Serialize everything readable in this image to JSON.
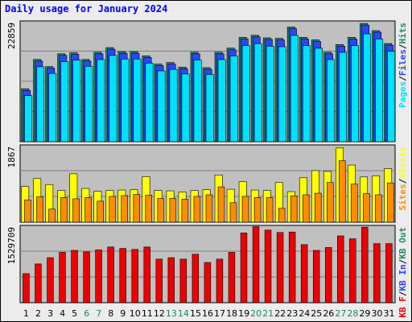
{
  "title": "Daily usage for January 2024",
  "colors": {
    "pages": "#00e0ff",
    "files": "#2a46ff",
    "hits": "#1d8c6a",
    "visits": "#ffff00",
    "sites": "#ff8c00",
    "kbin": "#ee0000",
    "weekend": "#1b8a5a",
    "weekday": "#000000",
    "plot_bg": "#c0c0c0",
    "frame_bg": "#ececec"
  },
  "chart_data": [
    {
      "type": "bar",
      "panel": "hits-files-pages",
      "ymax_label": "22859",
      "ylim": [
        0,
        22859
      ],
      "legend": [
        {
          "key": "pages",
          "text": "Pages",
          "color": "#00e0ff"
        },
        {
          "key": "sep1",
          "text": "/",
          "color": "#000000"
        },
        {
          "key": "files",
          "text": "Files",
          "color": "#2a46ff"
        },
        {
          "key": "sep2",
          "text": "/",
          "color": "#000000"
        },
        {
          "key": "hits",
          "text": "Hits",
          "color": "#1d8c6a"
        }
      ],
      "categories": [
        "1",
        "2",
        "3",
        "4",
        "5",
        "6",
        "7",
        "8",
        "9",
        "10",
        "11",
        "12",
        "13",
        "14",
        "15",
        "16",
        "17",
        "18",
        "19",
        "20",
        "21",
        "22",
        "23",
        "24",
        "25",
        "26",
        "27",
        "28",
        "29",
        "30",
        "31"
      ],
      "series": [
        {
          "name": "Hits",
          "values": [
            10300,
            16000,
            14600,
            17100,
            17300,
            16000,
            17400,
            18300,
            17500,
            17500,
            16700,
            15100,
            15400,
            14500,
            17400,
            14400,
            17400,
            18200,
            20300,
            20700,
            20200,
            20100,
            22300,
            20300,
            19800,
            17400,
            18900,
            20300,
            23000,
            21600,
            19100
          ]
        },
        {
          "name": "Files",
          "values": [
            10300,
            16000,
            14600,
            17100,
            17300,
            16000,
            17400,
            18300,
            17500,
            17500,
            16700,
            15100,
            15400,
            14500,
            17400,
            14400,
            17400,
            18200,
            20300,
            20700,
            20200,
            20100,
            22300,
            20300,
            19800,
            17400,
            18900,
            20300,
            23000,
            21600,
            19100
          ]
        },
        {
          "name": "Pages",
          "values": [
            9600,
            15200,
            13900,
            16200,
            16500,
            15300,
            16600,
            17400,
            16700,
            16700,
            15900,
            14400,
            14700,
            13800,
            16500,
            13700,
            16600,
            17300,
            19300,
            19700,
            19200,
            19100,
            21300,
            19300,
            18800,
            16600,
            18000,
            19300,
            21600,
            20600,
            18200
          ]
        }
      ]
    },
    {
      "type": "bar",
      "panel": "visits-sites",
      "ymax_label": "1867",
      "ylim": [
        0,
        1867
      ],
      "legend": [
        {
          "key": "sites",
          "text": "Sites",
          "color": "#ff8c00"
        },
        {
          "key": "sep3",
          "text": "/",
          "color": "#000000"
        },
        {
          "key": "visits",
          "text": "Visits",
          "color": "#ffff00"
        }
      ],
      "series": [
        {
          "name": "Visits",
          "values": [
            900,
            1100,
            950,
            800,
            1220,
            850,
            780,
            800,
            810,
            820,
            1150,
            800,
            790,
            760,
            800,
            820,
            1190,
            830,
            1020,
            810,
            800,
            1000,
            770,
            1120,
            1300,
            1280,
            1870,
            1440,
            1140,
            1170,
            1350
          ]
        },
        {
          "name": "Sites",
          "values": [
            560,
            640,
            330,
            620,
            590,
            620,
            530,
            650,
            670,
            700,
            680,
            600,
            600,
            580,
            650,
            690,
            890,
            490,
            650,
            620,
            620,
            350,
            660,
            690,
            730,
            1000,
            1550,
            960,
            720,
            690,
            990
          ]
        }
      ]
    },
    {
      "type": "bar",
      "panel": "kbytes",
      "ymax_label": "1529709",
      "ylim": [
        0,
        1529709
      ],
      "legend": [
        {
          "key": "kbf",
          "text": "KB F",
          "color": "#ee0000"
        },
        {
          "key": "sep4",
          "text": "/",
          "color": "#000000"
        },
        {
          "key": "kbin",
          "text": "KB In",
          "color": "#2a46ff"
        },
        {
          "key": "sep5",
          "text": "/",
          "color": "#000000"
        },
        {
          "key": "kbout",
          "text": "KB Out",
          "color": "#1d8c6a"
        }
      ],
      "series": [
        {
          "name": "KB F",
          "values": [
            600000,
            800000,
            930000,
            1040000,
            1080000,
            1050000,
            1090000,
            1150000,
            1120000,
            1100000,
            1150000,
            900000,
            930000,
            900000,
            1000000,
            830000,
            900000,
            1040000,
            1440000,
            1570000,
            1500000,
            1450000,
            1460000,
            1200000,
            1080000,
            1140000,
            1380000,
            1320000,
            1560000,
            1220000,
            1220000
          ]
        }
      ]
    }
  ]
}
